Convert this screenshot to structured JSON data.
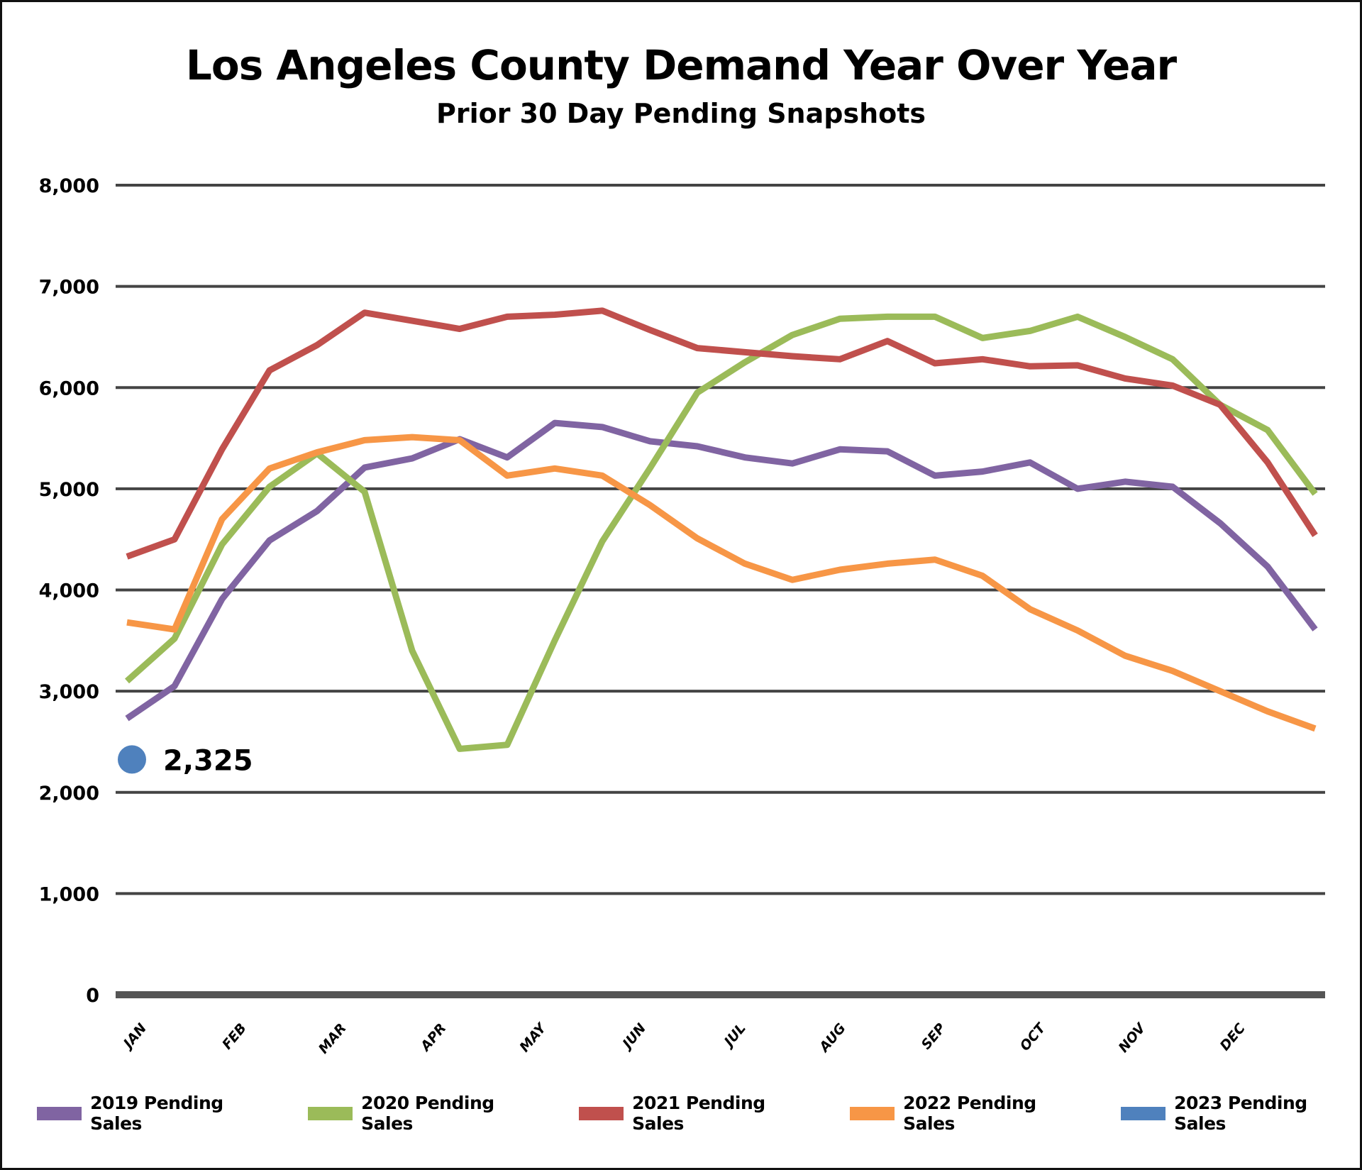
{
  "chart_data": {
    "type": "line",
    "title": "Los Angeles County Demand Year Over Year",
    "subtitle": "Prior 30 Day Pending Snapshots",
    "xlabel": "",
    "ylabel": "",
    "ylim": [
      0,
      8000
    ],
    "yticks": [
      0,
      1000,
      2000,
      3000,
      4000,
      5000,
      6000,
      7000,
      8000
    ],
    "ytick_labels": [
      "0",
      "1,000",
      "2,000",
      "3,000",
      "4,000",
      "5,000",
      "6,000",
      "7,000",
      "8,000"
    ],
    "month_labels": [
      "JAN",
      "FEB",
      "MAR",
      "APR",
      "MAY",
      "JUN",
      "JUL",
      "AUG",
      "SEP",
      "OCT",
      "NOV",
      "DEC"
    ],
    "points_per_series": 26,
    "grid": true,
    "legend_position": "bottom",
    "series": [
      {
        "name": "2019 Pending Sales",
        "color": "#8064a2",
        "values": [
          2730,
          3050,
          3910,
          4490,
          4780,
          5210,
          5300,
          5490,
          5310,
          5650,
          5610,
          5470,
          5420,
          5310,
          5250,
          5390,
          5370,
          5130,
          5170,
          5260,
          5000,
          5070,
          5020,
          4660,
          4230,
          3610
        ]
      },
      {
        "name": "2020 Pending Sales",
        "color": "#9bbb59",
        "values": [
          3100,
          3520,
          4450,
          5020,
          5350,
          4970,
          3400,
          2430,
          2470,
          3500,
          4480,
          5200,
          5950,
          6250,
          6520,
          6680,
          6700,
          6700,
          6490,
          6560,
          6700,
          6500,
          6280,
          5830,
          5580,
          4950
        ]
      },
      {
        "name": "2021 Pending Sales",
        "color": "#c0504d",
        "values": [
          4330,
          4500,
          5390,
          6170,
          6420,
          6740,
          6660,
          6580,
          6700,
          6720,
          6760,
          6570,
          6390,
          6350,
          6310,
          6280,
          6460,
          6240,
          6280,
          6210,
          6220,
          6090,
          6020,
          5830,
          5260,
          4540
        ]
      },
      {
        "name": "2022 Pending Sales",
        "color": "#f79646",
        "values": [
          3680,
          3610,
          4700,
          5200,
          5360,
          5480,
          5510,
          5480,
          5130,
          5200,
          5130,
          4840,
          4510,
          4260,
          4100,
          4200,
          4260,
          4300,
          4140,
          3810,
          3600,
          3350,
          3200,
          3000,
          2800,
          2630
        ]
      },
      {
        "name": "2023 Pending Sales",
        "color": "#4f81bd",
        "values": [
          2325
        ]
      }
    ],
    "annotations": [
      {
        "series": "2023 Pending Sales",
        "point_index": 0,
        "label": "2,325"
      }
    ]
  }
}
